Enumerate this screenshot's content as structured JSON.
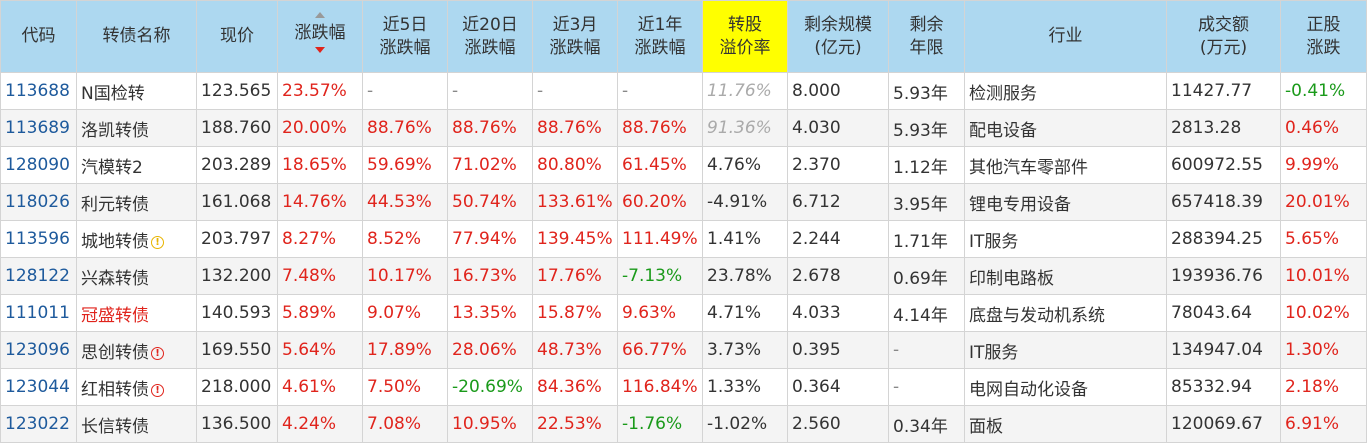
{
  "headers": {
    "code": "代码",
    "name": "转债名称",
    "price": "现价",
    "change": "涨跌幅",
    "change_5d_1": "近5日",
    "change_5d_2": "涨跌幅",
    "change_20d_1": "近20日",
    "change_20d_2": "涨跌幅",
    "change_3m_1": "近3月",
    "change_3m_2": "涨跌幅",
    "change_1y_1": "近1年",
    "change_1y_2": "涨跌幅",
    "premium_1": "转股",
    "premium_2": "溢价率",
    "remaining_1": "剩余规模",
    "remaining_2": "(亿元)",
    "years_1": "剩余",
    "years_2": "年限",
    "industry": "行业",
    "volume_1": "成交额",
    "volume_2": "(万元)",
    "stock_1": "正股",
    "stock_2": "涨跌"
  },
  "badge_icons": {
    "yellow": "warning-circle-icon",
    "red": "alert-circle-icon"
  },
  "rows": [
    {
      "code": "113688",
      "name": "N国检转",
      "name_red": false,
      "badge": "",
      "price": "123.565",
      "change": "23.57%",
      "c5": "-",
      "c20": "-",
      "c3m": "-",
      "c1y": "-",
      "premium": "11.76%",
      "premium_style": "gray-it",
      "remaining": "8.000",
      "years": "5.93年",
      "industry": "检测服务",
      "volume": "11427.77",
      "stock": "-0.41%"
    },
    {
      "code": "113689",
      "name": "洛凯转债",
      "name_red": false,
      "badge": "",
      "price": "188.760",
      "change": "20.00%",
      "c5": "88.76%",
      "c20": "88.76%",
      "c3m": "88.76%",
      "c1y": "88.76%",
      "premium": "91.36%",
      "premium_style": "gray-it",
      "remaining": "4.030",
      "years": "5.93年",
      "industry": "配电设备",
      "volume": "2813.28",
      "stock": "0.46%"
    },
    {
      "code": "128090",
      "name": "汽模转2",
      "name_red": false,
      "badge": "",
      "price": "203.289",
      "change": "18.65%",
      "c5": "59.69%",
      "c20": "71.02%",
      "c3m": "80.80%",
      "c1y": "61.45%",
      "premium": "4.76%",
      "premium_style": "",
      "remaining": "2.370",
      "years": "1.12年",
      "industry": "其他汽车零部件",
      "volume": "600972.55",
      "stock": "9.99%"
    },
    {
      "code": "118026",
      "name": "利元转债",
      "name_red": false,
      "badge": "",
      "price": "161.068",
      "change": "14.76%",
      "c5": "44.53%",
      "c20": "50.74%",
      "c3m": "133.61%",
      "c1y": "60.20%",
      "premium": "-4.91%",
      "premium_style": "",
      "remaining": "6.712",
      "years": "3.95年",
      "industry": "锂电专用设备",
      "volume": "657418.39",
      "stock": "20.01%"
    },
    {
      "code": "113596",
      "name": "城地转债",
      "name_red": false,
      "badge": "yellow",
      "price": "203.797",
      "change": "8.27%",
      "c5": "8.52%",
      "c20": "77.94%",
      "c3m": "139.45%",
      "c1y": "111.49%",
      "premium": "1.41%",
      "premium_style": "",
      "remaining": "2.244",
      "years": "1.71年",
      "industry": "IT服务",
      "volume": "288394.25",
      "stock": "5.65%"
    },
    {
      "code": "128122",
      "name": "兴森转债",
      "name_red": false,
      "badge": "",
      "price": "132.200",
      "change": "7.48%",
      "c5": "10.17%",
      "c20": "16.73%",
      "c3m": "17.76%",
      "c1y": "-7.13%",
      "premium": "23.78%",
      "premium_style": "",
      "remaining": "2.678",
      "years": "0.69年",
      "industry": "印制电路板",
      "volume": "193936.76",
      "stock": "10.01%"
    },
    {
      "code": "111011",
      "name": "冠盛转债",
      "name_red": true,
      "badge": "",
      "price": "140.593",
      "change": "5.89%",
      "c5": "9.07%",
      "c20": "13.35%",
      "c3m": "15.87%",
      "c1y": "9.63%",
      "premium": "4.71%",
      "premium_style": "",
      "remaining": "4.033",
      "years": "4.14年",
      "industry": "底盘与发动机系统",
      "volume": "78043.64",
      "stock": "10.02%"
    },
    {
      "code": "123096",
      "name": "思创转债",
      "name_red": false,
      "badge": "red",
      "price": "169.550",
      "change": "5.64%",
      "c5": "17.89%",
      "c20": "28.06%",
      "c3m": "48.73%",
      "c1y": "66.77%",
      "premium": "3.73%",
      "premium_style": "",
      "remaining": "0.395",
      "years": "-",
      "industry": "IT服务",
      "volume": "134947.04",
      "stock": "1.30%"
    },
    {
      "code": "123044",
      "name": "红相转债",
      "name_red": false,
      "badge": "red",
      "price": "218.000",
      "change": "4.61%",
      "c5": "7.50%",
      "c20": "-20.69%",
      "c3m": "84.36%",
      "c1y": "116.84%",
      "premium": "1.33%",
      "premium_style": "",
      "remaining": "0.364",
      "years": "-",
      "industry": "电网自动化设备",
      "volume": "85332.94",
      "stock": "2.18%"
    },
    {
      "code": "123022",
      "name": "长信转债",
      "name_red": false,
      "badge": "",
      "price": "136.500",
      "change": "4.24%",
      "c5": "7.08%",
      "c20": "10.95%",
      "c3m": "22.53%",
      "c1y": "-1.76%",
      "premium": "-1.02%",
      "premium_style": "",
      "remaining": "2.560",
      "years": "0.34年",
      "industry": "面板",
      "volume": "120069.67",
      "stock": "6.91%"
    }
  ],
  "colors": {
    "header_bg": "#add8f0",
    "highlight_header": "#ffff00",
    "up": "#e0241c",
    "down": "#1a9a1a",
    "code": "#1e5a9c"
  }
}
